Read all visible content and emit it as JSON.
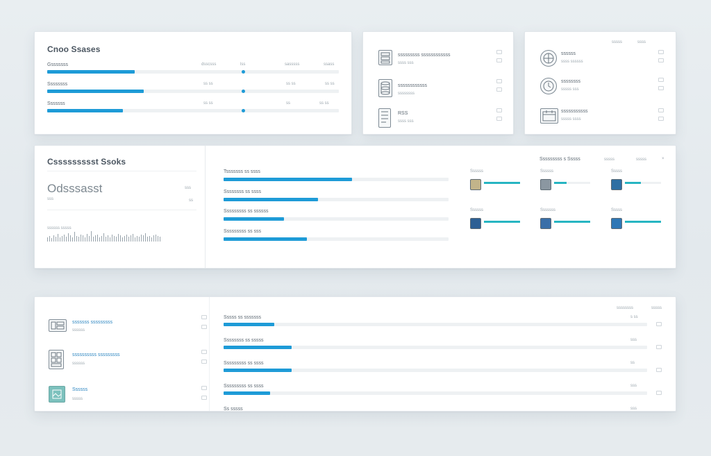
{
  "colors": {
    "accent": "#1e9bd7",
    "teal": "#27b5c2",
    "background": "#e6ebee"
  },
  "card1": {
    "title": "Cnoo Ssases",
    "col_headers": [
      "dsscsss",
      "lss"
    ],
    "col_header_right": [
      "sasssss",
      "ssass"
    ],
    "rows": [
      {
        "label": "Gsssssss",
        "progress": 0.3,
        "cols": [
          "",
          "",
          ""
        ]
      },
      {
        "label": "Ssssssss",
        "progress": 0.33,
        "cols": [
          "ss ss",
          "ss ss",
          "ss ss"
        ]
      },
      {
        "label": "Sssssss",
        "progress": 0.26,
        "cols": [
          "ss ss",
          "ss",
          "ss ss"
        ]
      }
    ]
  },
  "card2": {
    "items": [
      {
        "icon": "server-icon",
        "title": "sssssssss ssssssssssss",
        "sub": "ssss sss"
      },
      {
        "icon": "database-icon",
        "title": "ssssssssssss",
        "sub": "ssssssss"
      },
      {
        "icon": "document-icon",
        "title": "RSS",
        "sub": "ssss sss"
      }
    ]
  },
  "card3": {
    "header": [
      "sssss",
      "ssss"
    ],
    "items": [
      {
        "icon": "globe-icon",
        "title": "ssssss",
        "sub": "ssss ssssss"
      },
      {
        "icon": "clock-icon",
        "title": "ssssssss",
        "sub": "sssss sss"
      },
      {
        "icon": "calendar-icon",
        "title": "sssssssssss",
        "sub": "sssss ssss"
      }
    ]
  },
  "card4": {
    "title": "Cssssssssst Ssoks",
    "big_value": "Odsssasst",
    "big_sub": "sss",
    "right_small": [
      "sss",
      "ss"
    ],
    "spark_label": "ssssss sssss",
    "bars": [
      {
        "label": "Tsssssss ss ssss",
        "progress": 0.57
      },
      {
        "label": "Ssssssss ss ssss",
        "progress": 0.42
      },
      {
        "label": "Sssssssss ss ssssss",
        "progress": 0.27
      },
      {
        "label": "Sssssssss ss sss",
        "progress": 0.37
      }
    ],
    "grid_header": "Sssssssss s Sssss",
    "grid_header_right": [
      "sssss",
      "sssss"
    ],
    "grid": [
      {
        "label": "Ssssss",
        "icon": "image-icon",
        "progress": 1.0
      },
      {
        "label": "Ssssss",
        "icon": "chip-icon",
        "progress": 0.35
      },
      {
        "label": "Sssss",
        "icon": "globe-icon",
        "progress": 0.45
      },
      {
        "label": "Ssssss",
        "icon": "grid-icon",
        "progress": 1.0
      },
      {
        "label": "Sssssss",
        "icon": "photo-icon",
        "progress": 1.0
      },
      {
        "label": "Sssss",
        "icon": "chart-icon",
        "progress": 1.0
      }
    ]
  },
  "card5": {
    "header": [
      "ssssssss",
      "sssss"
    ],
    "list": [
      {
        "icon": "server-icon",
        "title": "sssssss sssssssss",
        "sub": "ssssss"
      },
      {
        "icon": "database-icon",
        "title": "ssssssssss sssssssss",
        "sub": "ssssss"
      },
      {
        "icon": "image-icon",
        "title": "Ssssss",
        "sub": "sssss"
      }
    ],
    "bars": [
      {
        "label": "Sssss ss sssssss",
        "progress": 0.12,
        "value": "s ss"
      },
      {
        "label": "Ssssssss ss sssss",
        "progress": 0.16,
        "value": "sss"
      },
      {
        "label": "Sssssssss ss ssss",
        "progress": 0.16,
        "value": "ss"
      },
      {
        "label": "Sssssssss ss ssss",
        "progress": 0.11,
        "value": "sss"
      },
      {
        "label": "Ss sssss",
        "progress": 0.0,
        "value": "sss"
      }
    ]
  }
}
